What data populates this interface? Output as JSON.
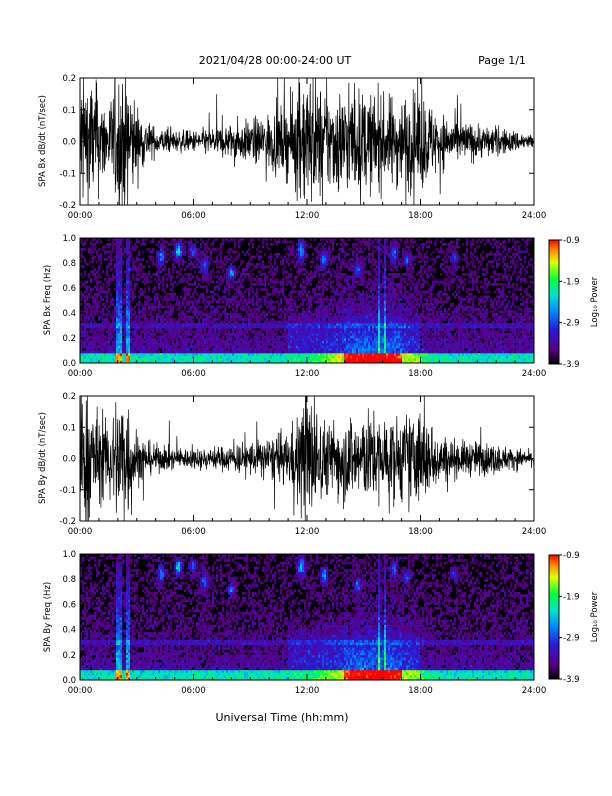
{
  "header": {
    "date_range": "2021/04/28  00:00-24:00 UT",
    "page": "Page 1/1"
  },
  "footer": {
    "xlabel": "Universal Time (hh:mm)"
  },
  "colors": {
    "trace": "#000000",
    "background": "#000000"
  },
  "colorbar": {
    "label": "Log₁₀ Power",
    "ticks": [
      {
        "value": -0.9,
        "label": "-0.9"
      },
      {
        "value": -1.9,
        "label": "-1.9"
      },
      {
        "value": -2.9,
        "label": "-2.9"
      },
      {
        "value": -3.9,
        "label": "-3.9"
      }
    ],
    "range": [
      -3.9,
      -0.9
    ],
    "colormap": "rainbow (black-purple-blue-cyan-green-yellow-red)"
  },
  "chart_data": [
    {
      "type": "line",
      "ylabel": "SPA Bx dB/dt (nT/sec)",
      "xlim": [
        "00:00",
        "24:00"
      ],
      "ylim": [
        -0.2,
        0.2
      ],
      "x_ticks": [
        "00:00",
        "06:00",
        "12:00",
        "18:00",
        "24:00"
      ],
      "y_ticks": [
        "-0.2",
        "-0.1",
        "0.0",
        "0.1",
        "0.2"
      ],
      "y_tick_values": [
        -0.2,
        -0.1,
        0.0,
        0.1,
        0.2
      ],
      "series": [
        {
          "x_hours": [
            0,
            0.5,
            1,
            1.5,
            2,
            2.5,
            3,
            3.5,
            4,
            5,
            6,
            7,
            8,
            9,
            10,
            11,
            12,
            13,
            14,
            15,
            16,
            17,
            18,
            19,
            20,
            21,
            22,
            23,
            24
          ],
          "envelope": [
            0.2,
            0.2,
            0.14,
            0.1,
            0.2,
            0.2,
            0.1,
            0.06,
            0.04,
            0.03,
            0.03,
            0.04,
            0.05,
            0.06,
            0.08,
            0.1,
            0.2,
            0.14,
            0.15,
            0.14,
            0.12,
            0.13,
            0.14,
            0.08,
            0.06,
            0.05,
            0.04,
            0.03,
            0.02
          ]
        }
      ]
    },
    {
      "type": "heatmap",
      "ylabel": "SPA Bx Freq (Hz)",
      "xlim": [
        "00:00",
        "24:00"
      ],
      "ylim": [
        0.0,
        1.0
      ],
      "x_ticks": [
        "00:00",
        "06:00",
        "12:00",
        "18:00",
        "24:00"
      ],
      "y_ticks": [
        "0.0",
        "0.2",
        "0.4",
        "0.6",
        "0.8",
        "1.0"
      ],
      "y_tick_values": [
        0.0,
        0.2,
        0.4,
        0.6,
        0.8,
        1.0
      ],
      "zlabel": "Log₁₀ Power",
      "zlim": [
        -3.9,
        -0.9
      ]
    },
    {
      "type": "line",
      "ylabel": "SPA By dB/dt (nT/sec)",
      "xlim": [
        "00:00",
        "24:00"
      ],
      "ylim": [
        -0.2,
        0.2
      ],
      "x_ticks": [
        "00:00",
        "06:00",
        "12:00",
        "18:00",
        "24:00"
      ],
      "y_ticks": [
        "-0.2",
        "-0.1",
        "0.0",
        "0.1",
        "0.2"
      ],
      "y_tick_values": [
        -0.2,
        -0.1,
        0.0,
        0.1,
        0.2
      ],
      "series": [
        {
          "x_hours": [
            0,
            0.5,
            1,
            1.5,
            2,
            2.5,
            3,
            3.5,
            4,
            5,
            6,
            7,
            8,
            9,
            10,
            11,
            12,
            13,
            14,
            15,
            16,
            17,
            18,
            19,
            20,
            21,
            22,
            23,
            24
          ],
          "envelope": [
            0.2,
            0.2,
            0.12,
            0.1,
            0.2,
            0.2,
            0.08,
            0.05,
            0.04,
            0.03,
            0.03,
            0.03,
            0.04,
            0.05,
            0.06,
            0.07,
            0.2,
            0.1,
            0.12,
            0.13,
            0.12,
            0.12,
            0.14,
            0.07,
            0.05,
            0.05,
            0.04,
            0.03,
            0.02
          ]
        }
      ]
    },
    {
      "type": "heatmap",
      "ylabel": "SPA By Freq (Hz)",
      "xlim": [
        "00:00",
        "24:00"
      ],
      "ylim": [
        0.0,
        1.0
      ],
      "x_ticks": [
        "00:00",
        "06:00",
        "12:00",
        "18:00",
        "24:00"
      ],
      "y_ticks": [
        "0.0",
        "0.2",
        "0.4",
        "0.6",
        "0.8",
        "1.0"
      ],
      "y_tick_values": [
        0.0,
        0.2,
        0.4,
        0.6,
        0.8,
        1.0
      ],
      "zlabel": "Log₁₀ Power",
      "zlim": [
        -3.9,
        -0.9
      ]
    }
  ]
}
